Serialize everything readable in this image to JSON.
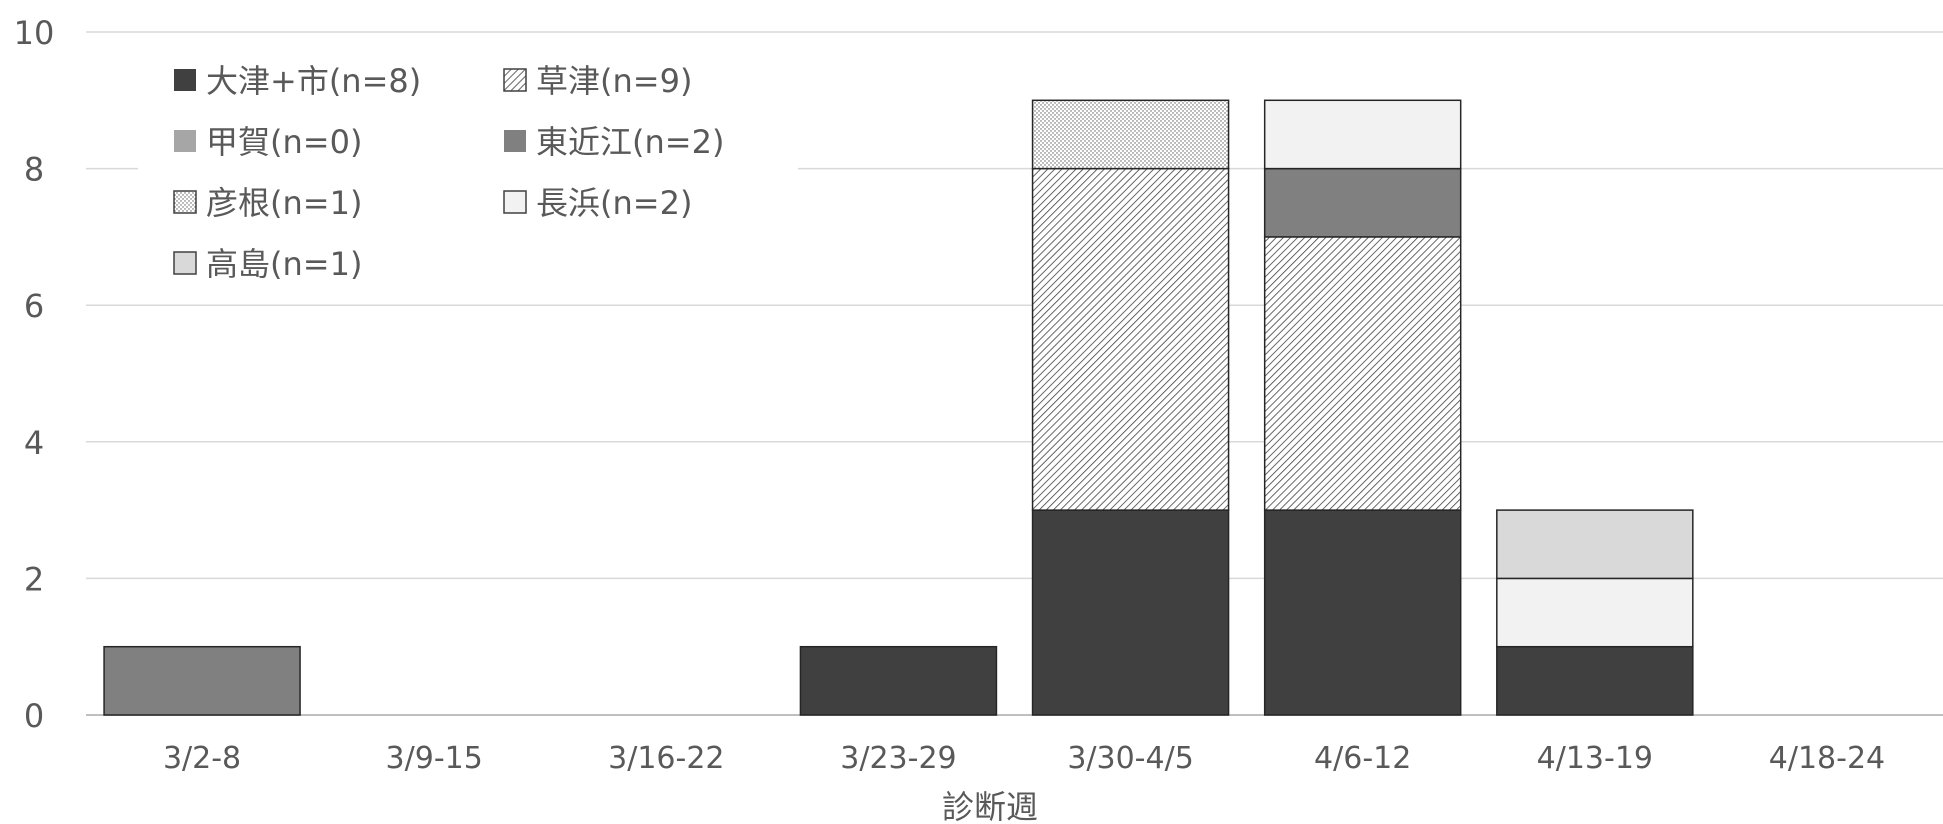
{
  "chart_data": {
    "type": "bar",
    "stacked": true,
    "title": "",
    "xlabel": "診断週",
    "ylabel": "",
    "ylim": [
      0,
      10
    ],
    "yticks": [
      0,
      2,
      4,
      6,
      8,
      10
    ],
    "grid": true,
    "legend_position": "top-left",
    "categories": [
      "3/2-8",
      "3/9-15",
      "3/16-22",
      "3/23-29",
      "3/30-4/5",
      "4/6-12",
      "4/13-19",
      "4/18-24"
    ],
    "series": [
      {
        "name": "大津+市(n=8)",
        "values": [
          0,
          0,
          0,
          1,
          3,
          3,
          1,
          0
        ],
        "color": "#404040",
        "pattern": "solid"
      },
      {
        "name": "草津(n=9)",
        "values": [
          0,
          0,
          0,
          0,
          5,
          4,
          0,
          0
        ],
        "color": "#ffffff",
        "pattern": "diagonal"
      },
      {
        "name": "甲賀(n=0)",
        "values": [
          0,
          0,
          0,
          0,
          0,
          0,
          0,
          0
        ],
        "color": "#a6a6a6",
        "pattern": "solid"
      },
      {
        "name": "東近江(n=2)",
        "values": [
          1,
          0,
          0,
          0,
          0,
          1,
          0,
          0
        ],
        "color": "#808080",
        "pattern": "solid"
      },
      {
        "name": "彦根(n=1)",
        "values": [
          0,
          0,
          0,
          0,
          1,
          0,
          0,
          0
        ],
        "color": "#ffffff",
        "pattern": "dots"
      },
      {
        "name": "長浜(n=2)",
        "values": [
          0,
          0,
          0,
          0,
          0,
          1,
          1,
          0
        ],
        "color": "#f2f2f2",
        "pattern": "solid"
      },
      {
        "name": "高島(n=1)",
        "values": [
          0,
          0,
          0,
          0,
          0,
          0,
          1,
          0
        ],
        "color": "#d9d9d9",
        "pattern": "solid"
      }
    ]
  }
}
